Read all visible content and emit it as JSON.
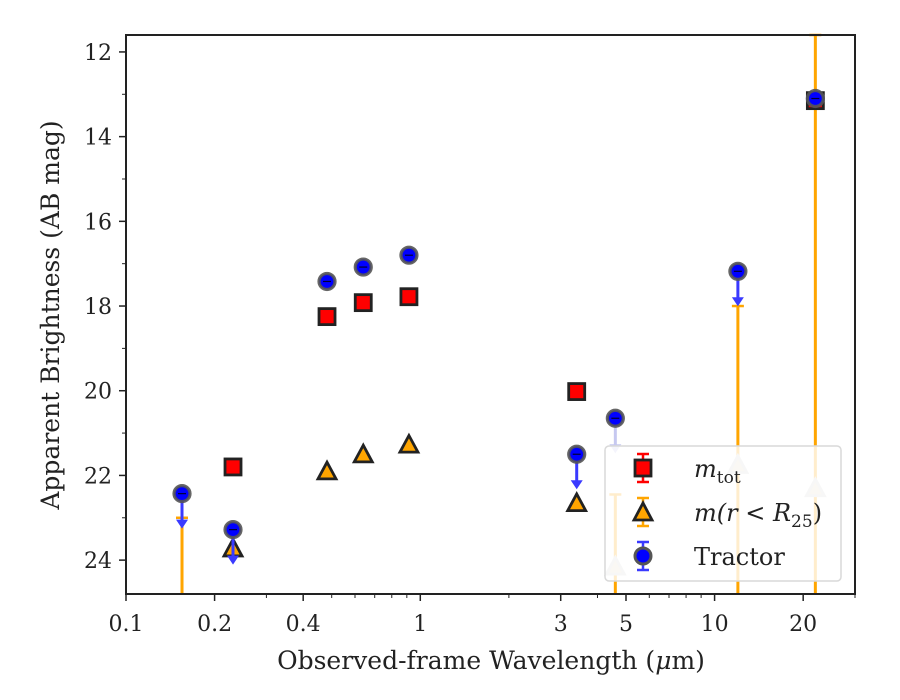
{
  "chart_data": {
    "type": "scatter",
    "xscale": "log",
    "yaxis_inverted": true,
    "xlabel_main": "Observed-frame Wavelength (",
    "xlabel_unit_mu": "μ",
    "xlabel_unit_rest": "m)",
    "ylabel": "Apparent Brightness (AB mag)",
    "xlim": [
      0.1,
      30
    ],
    "ylim": [
      24.8,
      11.6
    ],
    "x_ticks": [
      {
        "v": 0.1,
        "label": "0.1"
      },
      {
        "v": 0.2,
        "label": "0.2"
      },
      {
        "v": 0.4,
        "label": "0.4"
      },
      {
        "v": 1,
        "label": "1"
      },
      {
        "v": 3,
        "label": "3"
      },
      {
        "v": 5,
        "label": "5"
      },
      {
        "v": 10,
        "label": "10"
      },
      {
        "v": 20,
        "label": "20"
      }
    ],
    "y_ticks": [
      {
        "v": 12,
        "label": "12"
      },
      {
        "v": 14,
        "label": "14"
      },
      {
        "v": 16,
        "label": "16"
      },
      {
        "v": 18,
        "label": "18"
      },
      {
        "v": 20,
        "label": "20"
      },
      {
        "v": 22,
        "label": "22"
      },
      {
        "v": 24,
        "label": "24"
      }
    ],
    "legend_position": "lower right",
    "series": [
      {
        "key": "mtot",
        "legend_main": "m",
        "legend_sub": "tot",
        "marker": "square",
        "color": "#ff0000",
        "edge_color": "#222222",
        "points": [
          {
            "x": 0.231,
            "y": 21.8
          },
          {
            "x": 0.482,
            "y": 18.25
          },
          {
            "x": 0.64,
            "y": 17.92
          },
          {
            "x": 0.915,
            "y": 17.78
          },
          {
            "x": 3.4,
            "y": 20.02
          },
          {
            "x": 22.0,
            "y": 13.15
          }
        ]
      },
      {
        "key": "mr25",
        "legend_main": "m",
        "legend_rest": "(r < R",
        "legend_sub": "25",
        "legend_close": ")",
        "marker": "triangle",
        "color": "#ffa500",
        "edge_color": "#222222",
        "points": [
          {
            "x": 0.231,
            "y": 23.72,
            "faded": false
          },
          {
            "x": 0.482,
            "y": 21.9,
            "faded": false
          },
          {
            "x": 0.64,
            "y": 21.5,
            "faded": false
          },
          {
            "x": 0.915,
            "y": 21.27,
            "faded": false
          },
          {
            "x": 3.4,
            "y": 22.65,
            "faded": false
          },
          {
            "x": 4.6,
            "y": 24.15,
            "faded": true
          },
          {
            "x": 12.0,
            "y": 21.75,
            "faded": true
          },
          {
            "x": 22.0,
            "y": 22.3,
            "faded": true
          }
        ],
        "lines": [
          {
            "x": 0.155,
            "y_top": 23.0,
            "y_bottom": 24.8
          },
          {
            "x": 4.6,
            "y_top": 22.45,
            "y_bottom": 24.8
          },
          {
            "x": 12.0,
            "y_top": 18.0,
            "y_bottom": 24.8
          },
          {
            "x": 22.0,
            "y_top": 11.6,
            "y_bottom": 24.8
          }
        ]
      },
      {
        "key": "tractor",
        "legend_main": "Tractor",
        "marker": "circle",
        "color": "#0000ff",
        "edge_color": "#333333",
        "points": [
          {
            "x": 0.155,
            "y": 22.43,
            "limit": true
          },
          {
            "x": 0.231,
            "y": 23.28,
            "limit": true
          },
          {
            "x": 0.482,
            "y": 17.42,
            "limit": false
          },
          {
            "x": 0.64,
            "y": 17.08,
            "limit": false
          },
          {
            "x": 0.915,
            "y": 16.8,
            "limit": false
          },
          {
            "x": 3.4,
            "y": 21.5,
            "limit": true
          },
          {
            "x": 4.6,
            "y": 20.65,
            "limit": true,
            "faded_arrow": true
          },
          {
            "x": 12.0,
            "y": 17.18,
            "limit": true
          },
          {
            "x": 22.0,
            "y": 13.1,
            "limit": false
          }
        ]
      }
    ]
  }
}
